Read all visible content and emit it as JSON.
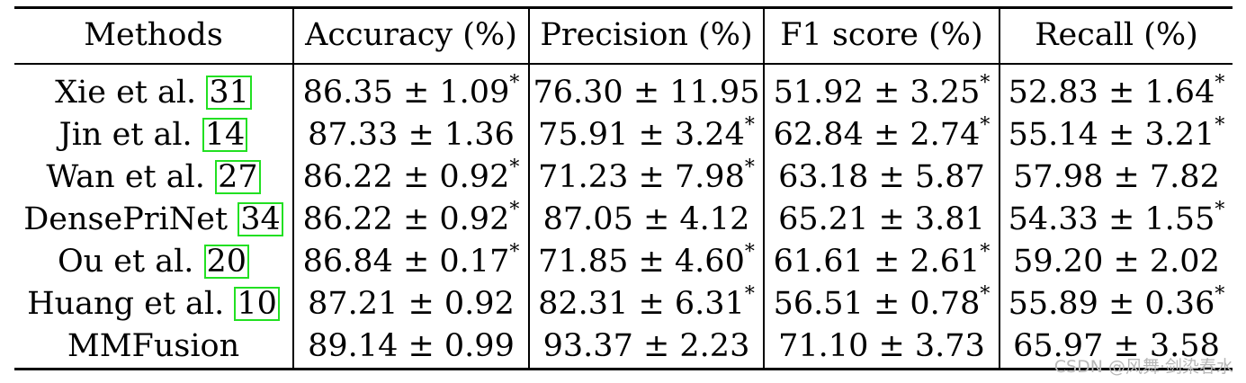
{
  "table": {
    "headers": [
      "Methods",
      "Accuracy (%)",
      "Precision (%)",
      "F1 score (%)",
      "Recall (%)"
    ],
    "rows": [
      {
        "method": "Xie et al. ",
        "cite": "31",
        "cells": [
          {
            "value": "86.35 ± 1.09",
            "mark": "*"
          },
          {
            "value": "76.30 ± 11.95",
            "mark": ""
          },
          {
            "value": "51.92 ± 3.25",
            "mark": "*"
          },
          {
            "value": "52.83 ± 1.64",
            "mark": "*"
          }
        ]
      },
      {
        "method": "Jin et al. ",
        "cite": "14",
        "cells": [
          {
            "value": "87.33 ± 1.36",
            "mark": ""
          },
          {
            "value": "75.91 ± 3.24",
            "mark": "*"
          },
          {
            "value": "62.84 ± 2.74",
            "mark": "*"
          },
          {
            "value": "55.14 ± 3.21",
            "mark": "*"
          }
        ]
      },
      {
        "method": "Wan et al. ",
        "cite": "27",
        "cells": [
          {
            "value": "86.22 ± 0.92",
            "mark": "*"
          },
          {
            "value": "71.23 ± 7.98",
            "mark": "*"
          },
          {
            "value": "63.18 ± 5.87",
            "mark": ""
          },
          {
            "value": "57.98 ± 7.82",
            "mark": ""
          }
        ]
      },
      {
        "method": "DensePriNet ",
        "cite": "34",
        "cells": [
          {
            "value": "86.22 ± 0.92",
            "mark": "*"
          },
          {
            "value": "87.05 ± 4.12",
            "mark": ""
          },
          {
            "value": "65.21 ± 3.81",
            "mark": ""
          },
          {
            "value": "54.33 ± 1.55",
            "mark": "*"
          }
        ]
      },
      {
        "method": "Ou et al. ",
        "cite": "20",
        "cells": [
          {
            "value": "86.84 ± 0.17",
            "mark": "*"
          },
          {
            "value": "71.85 ± 4.60",
            "mark": "*"
          },
          {
            "value": "61.61 ± 2.61",
            "mark": "*"
          },
          {
            "value": "59.20 ± 2.02",
            "mark": ""
          }
        ]
      },
      {
        "method": "Huang et al. ",
        "cite": "10",
        "cells": [
          {
            "value": "87.21 ± 0.92",
            "mark": ""
          },
          {
            "value": "82.31 ± 6.31",
            "mark": "*"
          },
          {
            "value": "56.51 ± 0.78",
            "mark": "*"
          },
          {
            "value": "55.89 ± 0.36",
            "mark": "*"
          }
        ]
      },
      {
        "method": "MMFusion",
        "cite": "",
        "bold": true,
        "cells": [
          {
            "value": "89.14 ± 0.99",
            "mark": ""
          },
          {
            "value": "93.37 ± 2.23",
            "mark": ""
          },
          {
            "value": "71.10 ± 3.73",
            "mark": ""
          },
          {
            "value": "65.97 ± 3.58",
            "mark": ""
          }
        ]
      }
    ]
  },
  "watermark": "CSDN @风舞·剑染春水",
  "colors": {
    "cite_box_border": "#22e022",
    "rule_lines": "#000000",
    "watermark": "#b8b8b8"
  }
}
